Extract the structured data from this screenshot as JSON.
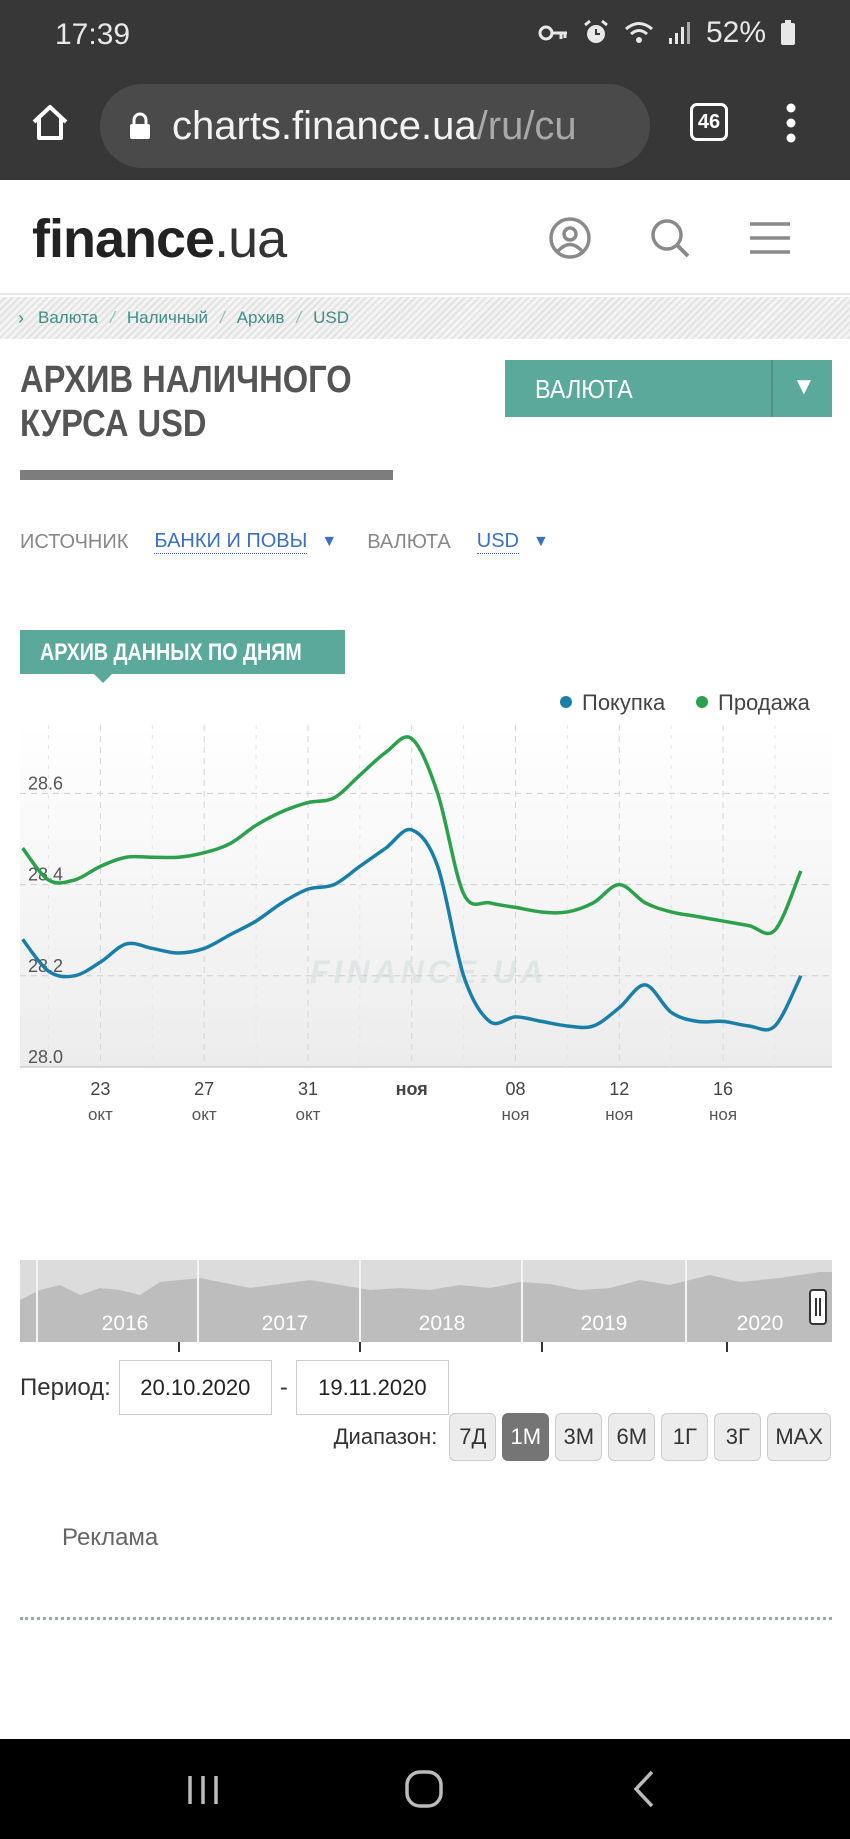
{
  "status_bar": {
    "time": "17:39",
    "battery": "52%"
  },
  "browser": {
    "url_host": "charts.finance.ua",
    "url_path": "/ru/cu",
    "tab_count": "46"
  },
  "site": {
    "logo_main": "finance",
    "logo_suffix": ".ua"
  },
  "breadcrumb": [
    "Валюта",
    "Наличный",
    "Архив",
    "USD"
  ],
  "page": {
    "title": "АРХИВ НАЛИЧНОГО КУРСА USD",
    "currency_button": "ВАЛЮТА"
  },
  "filters": {
    "source_label": "ИСТОЧНИК",
    "source_value": "БАНКИ И ПОВЫ",
    "currency_label": "ВАЛЮТА",
    "currency_value": "USD"
  },
  "section": {
    "title": "АРХИВ ДАННЫХ ПО ДНЯМ"
  },
  "colors": {
    "accent": "#5aa99a",
    "buy": "#1a7fa8",
    "sell": "#2aa14a",
    "link": "#3a6fc4"
  },
  "chart_data": {
    "type": "line",
    "watermark": "FINANCE.UA",
    "legend_position": "top-right",
    "grid": true,
    "ylim": [
      28.0,
      28.75
    ],
    "y_ticks": [
      "28.0",
      "28.2",
      "28.4",
      "28.6"
    ],
    "x_ticks": [
      {
        "day": "23",
        "month": "окт"
      },
      {
        "day": "27",
        "month": "окт"
      },
      {
        "day": "31",
        "month": "окт"
      },
      {
        "day": "ноя",
        "month": ""
      },
      {
        "day": "08",
        "month": "ноя"
      },
      {
        "day": "12",
        "month": "ноя"
      },
      {
        "day": "16",
        "month": "ноя"
      }
    ],
    "x": [
      "20.10",
      "21.10",
      "22.10",
      "23.10",
      "24.10",
      "25.10",
      "26.10",
      "27.10",
      "28.10",
      "29.10",
      "30.10",
      "31.10",
      "01.11",
      "02.11",
      "03.11",
      "04.11",
      "05.11",
      "06.11",
      "07.11",
      "08.11",
      "09.11",
      "10.11",
      "11.11",
      "12.11",
      "13.11",
      "14.11",
      "15.11",
      "16.11",
      "17.11",
      "18.11",
      "19.11"
    ],
    "series": [
      {
        "name": "Покупка",
        "color": "#1a7fa8",
        "values": [
          28.28,
          28.21,
          28.2,
          28.23,
          28.27,
          28.26,
          28.25,
          28.26,
          28.29,
          28.32,
          28.36,
          28.39,
          28.4,
          28.44,
          28.48,
          28.52,
          28.44,
          28.2,
          28.1,
          28.11,
          28.1,
          28.09,
          28.09,
          28.13,
          28.18,
          28.12,
          28.1,
          28.1,
          28.09,
          28.09,
          28.2
        ]
      },
      {
        "name": "Продажа",
        "color": "#2aa14a",
        "values": [
          28.48,
          28.41,
          28.41,
          28.44,
          28.46,
          28.46,
          28.46,
          28.47,
          28.49,
          28.53,
          28.56,
          28.58,
          28.59,
          28.64,
          28.69,
          28.72,
          28.6,
          28.38,
          28.36,
          28.35,
          28.34,
          28.34,
          28.36,
          28.4,
          28.36,
          28.34,
          28.33,
          28.32,
          28.31,
          28.3,
          28.43
        ]
      }
    ]
  },
  "navigator": {
    "years": [
      "2016",
      "2017",
      "2018",
      "2019",
      "2020"
    ]
  },
  "period": {
    "label": "Период:",
    "from": "20.10.2020",
    "separator": "-",
    "to": "19.11.2020"
  },
  "range": {
    "label": "Диапазон:",
    "buttons": [
      "7Д",
      "1М",
      "3М",
      "6М",
      "1Г",
      "3Г",
      "MAX"
    ],
    "active": "1М"
  },
  "ad": {
    "label": "Реклама"
  }
}
